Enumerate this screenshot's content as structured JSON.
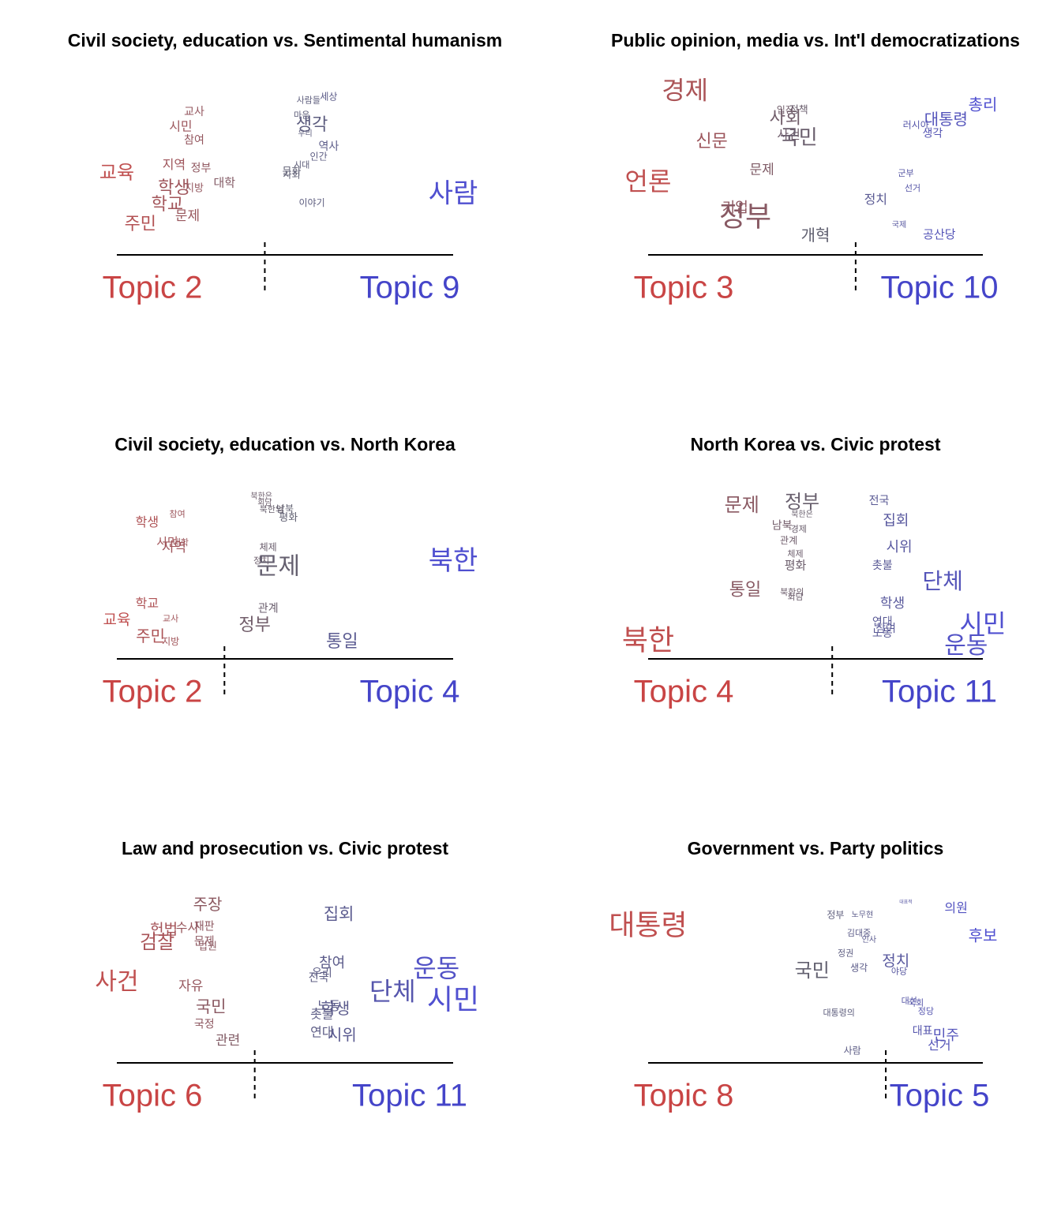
{
  "chart_data": [
    {
      "type": "perspectives",
      "title": "Civil society, education vs. Sentimental humanism",
      "topics": [
        {
          "name": "Topic 2",
          "color": "#c94545"
        },
        {
          "name": "Topic 9",
          "color": "#4545c9"
        }
      ],
      "gradient": [
        "#c05050",
        "#606070",
        "#5050d0"
      ],
      "xlim": [
        0,
        1
      ],
      "ylim": [
        0,
        1
      ],
      "divider": 0.44,
      "words": [
        "교사",
        "시민",
        "참여",
        "교육",
        "지역",
        "정부",
        "대학",
        "학생",
        "지방",
        "학교",
        "문제",
        "주민",
        "사람들",
        "세상",
        "마음",
        "생각",
        "우리",
        "역사",
        "인간",
        "시대",
        "문화",
        "사회",
        "이야기",
        "사람"
      ],
      "x": [
        0.23,
        0.19,
        0.23,
        0.0,
        0.17,
        0.25,
        0.32,
        0.17,
        0.23,
        0.15,
        0.21,
        0.07,
        0.57,
        0.63,
        0.55,
        0.58,
        0.56,
        0.63,
        0.6,
        0.55,
        0.52,
        0.52,
        0.58,
        1.0
      ],
      "y": [
        0.86,
        0.77,
        0.69,
        0.49,
        0.54,
        0.52,
        0.43,
        0.4,
        0.4,
        0.3,
        0.23,
        0.18,
        0.93,
        0.95,
        0.84,
        0.78,
        0.73,
        0.65,
        0.59,
        0.54,
        0.5,
        0.48,
        0.31,
        0.36
      ],
      "size": [
        14,
        16,
        14,
        24,
        16,
        14,
        15,
        22,
        13,
        22,
        17,
        22,
        11,
        12,
        11,
        22,
        10,
        14,
        12,
        11,
        13,
        12,
        12,
        34
      ]
    },
    {
      "type": "perspectives",
      "title": "Public opinion, media vs. Int'l democratizations",
      "topics": [
        {
          "name": "Topic 3",
          "color": "#c94545"
        },
        {
          "name": "Topic 10",
          "color": "#4545c9"
        }
      ],
      "gradient": [
        "#c05050",
        "#606070",
        "#5050d0"
      ],
      "xlim": [
        0,
        1
      ],
      "ylim": [
        0,
        1
      ],
      "divider": 0.62,
      "words": [
        "경제",
        "입장",
        "정책",
        "사회",
        "사건",
        "국민",
        "신문",
        "문제",
        "언론",
        "기업",
        "정부",
        "개혁",
        "총리",
        "대통령",
        "러시아",
        "생각",
        "군부",
        "선거",
        "정치",
        "국제",
        "공산당"
      ],
      "x": [
        0.11,
        0.41,
        0.45,
        0.41,
        0.42,
        0.45,
        0.19,
        0.34,
        0.0,
        0.26,
        0.29,
        0.5,
        1.0,
        0.89,
        0.8,
        0.85,
        0.77,
        0.79,
        0.68,
        0.75,
        0.87
      ],
      "y": [
        0.98,
        0.87,
        0.87,
        0.82,
        0.72,
        0.7,
        0.68,
        0.51,
        0.43,
        0.28,
        0.22,
        0.11,
        0.9,
        0.81,
        0.78,
        0.73,
        0.49,
        0.4,
        0.33,
        0.18,
        0.12
      ],
      "size": [
        32,
        12,
        13,
        22,
        16,
        26,
        22,
        17,
        32,
        18,
        36,
        20,
        20,
        20,
        12,
        14,
        11,
        11,
        16,
        10,
        15
      ]
    },
    {
      "type": "perspectives",
      "title": "Civil society, education vs. North Korea",
      "topics": [
        {
          "name": "Topic 2",
          "color": "#c94545"
        },
        {
          "name": "Topic 4",
          "color": "#4545c9"
        }
      ],
      "gradient": [
        "#c05050",
        "#606070",
        "#5050d0"
      ],
      "xlim": [
        0,
        1
      ],
      "ylim": [
        0,
        1
      ],
      "divider": 0.32,
      "words": [
        "북한은",
        "회담",
        "남북",
        "북한의",
        "평화",
        "학생",
        "참여",
        "시민",
        "대학",
        "지역",
        "체제",
        "정치",
        "문제",
        "북한",
        "학교",
        "교사",
        "교육",
        "관계",
        "정부",
        "주민",
        "지방",
        "통일"
      ],
      "x": [
        0.43,
        0.44,
        0.5,
        0.46,
        0.51,
        0.09,
        0.18,
        0.15,
        0.19,
        0.17,
        0.45,
        0.43,
        0.48,
        1.0,
        0.09,
        0.16,
        0.0,
        0.45,
        0.41,
        0.1,
        0.16,
        0.67
      ],
      "y": [
        0.98,
        0.94,
        0.9,
        0.9,
        0.85,
        0.82,
        0.87,
        0.7,
        0.7,
        0.67,
        0.67,
        0.59,
        0.55,
        0.58,
        0.33,
        0.24,
        0.23,
        0.3,
        0.2,
        0.13,
        0.1,
        0.1
      ],
      "size": [
        10,
        10,
        12,
        11,
        13,
        16,
        11,
        15,
        11,
        17,
        12,
        11,
        30,
        34,
        16,
        11,
        19,
        14,
        22,
        20,
        12,
        22
      ]
    },
    {
      "type": "perspectives",
      "title": "North Korea vs. Civic protest",
      "topics": [
        {
          "name": "Topic 4",
          "color": "#c94545"
        },
        {
          "name": "Topic 11",
          "color": "#4545c9"
        }
      ],
      "gradient": [
        "#c05050",
        "#606070",
        "#5050d0"
      ],
      "xlim": [
        0,
        1
      ],
      "ylim": [
        0,
        1
      ],
      "divider": 0.55,
      "words": [
        "문제",
        "정부",
        "북한은",
        "남북",
        "경제",
        "관계",
        "체제",
        "평화",
        "통일",
        "북한의",
        "회담",
        "북한",
        "전국",
        "집회",
        "시위",
        "촛불",
        "단체",
        "학생",
        "연대",
        "참여",
        "노동",
        "시민",
        "운동"
      ],
      "x": [
        0.28,
        0.46,
        0.46,
        0.4,
        0.45,
        0.42,
        0.44,
        0.44,
        0.29,
        0.43,
        0.44,
        0.0,
        0.69,
        0.74,
        0.75,
        0.7,
        0.88,
        0.73,
        0.7,
        0.71,
        0.7,
        1.0,
        0.95
      ],
      "y": [
        0.92,
        0.94,
        0.87,
        0.8,
        0.78,
        0.71,
        0.63,
        0.56,
        0.41,
        0.4,
        0.37,
        0.1,
        0.95,
        0.83,
        0.67,
        0.56,
        0.46,
        0.33,
        0.22,
        0.18,
        0.15,
        0.2,
        0.07
      ],
      "size": [
        24,
        24,
        10,
        14,
        11,
        12,
        11,
        15,
        22,
        11,
        11,
        36,
        14,
        18,
        18,
        14,
        28,
        17,
        14,
        14,
        14,
        32,
        30
      ]
    },
    {
      "type": "perspectives",
      "title": "Law and prosecution vs. Civic protest",
      "topics": [
        {
          "name": "Topic 6",
          "color": "#c94545"
        },
        {
          "name": "Topic 11",
          "color": "#4545c9"
        }
      ],
      "gradient": [
        "#c05050",
        "#606070",
        "#5050d0"
      ],
      "xlim": [
        0,
        1
      ],
      "ylim": [
        0,
        1
      ],
      "divider": 0.41,
      "words": [
        "주장",
        "수사",
        "재판",
        "헌법",
        "검찰",
        "문제",
        "법원",
        "사건",
        "자유",
        "국민",
        "국정",
        "관련",
        "집회",
        "참여",
        "우리",
        "전국",
        "학생",
        "노동",
        "촛불",
        "연대",
        "시위",
        "단체",
        "운동",
        "시민"
      ],
      "x": [
        0.27,
        0.21,
        0.26,
        0.14,
        0.12,
        0.26,
        0.27,
        0.0,
        0.22,
        0.28,
        0.26,
        0.33,
        0.66,
        0.64,
        0.61,
        0.6,
        0.65,
        0.63,
        0.61,
        0.61,
        0.67,
        0.82,
        0.95,
        1.0
      ],
      "y": [
        0.95,
        0.81,
        0.82,
        0.8,
        0.72,
        0.73,
        0.7,
        0.48,
        0.46,
        0.33,
        0.23,
        0.13,
        0.89,
        0.6,
        0.54,
        0.51,
        0.32,
        0.34,
        0.29,
        0.18,
        0.16,
        0.42,
        0.56,
        0.37
      ],
      "size": [
        20,
        16,
        14,
        19,
        24,
        14,
        13,
        30,
        17,
        21,
        14,
        17,
        21,
        18,
        14,
        14,
        20,
        16,
        16,
        16,
        20,
        32,
        32,
        36
      ]
    },
    {
      "type": "perspectives",
      "title": "Government vs. Party politics",
      "topics": [
        {
          "name": "Topic 8",
          "color": "#c94545"
        },
        {
          "name": "Topic 5",
          "color": "#4545c9"
        }
      ],
      "gradient": [
        "#c05050",
        "#606070",
        "#5050d0"
      ],
      "xlim": [
        0,
        1
      ],
      "ylim": [
        0,
        1
      ],
      "divider": 0.71,
      "words": [
        "대통령",
        "정부",
        "노무현",
        "대표적",
        "김대중",
        "인사",
        "정권",
        "생각",
        "국민",
        "정치",
        "야당",
        "대통령의",
        "사람",
        "의원",
        "후보",
        "대선",
        "국회",
        "정당",
        "대표",
        "민주",
        "선거"
      ],
      "x": [
        0.0,
        0.56,
        0.64,
        0.77,
        0.63,
        0.66,
        0.59,
        0.63,
        0.49,
        0.74,
        0.75,
        0.57,
        0.61,
        0.92,
        1.0,
        0.78,
        0.8,
        0.83,
        0.82,
        0.89,
        0.87
      ],
      "y": [
        0.82,
        0.89,
        0.89,
        0.97,
        0.78,
        0.74,
        0.66,
        0.57,
        0.55,
        0.61,
        0.55,
        0.3,
        0.07,
        0.93,
        0.76,
        0.37,
        0.36,
        0.31,
        0.19,
        0.16,
        0.1
      ],
      "size": [
        36,
        12,
        10,
        6,
        11,
        10,
        11,
        12,
        24,
        19,
        11,
        11,
        12,
        16,
        20,
        11,
        11,
        11,
        14,
        18,
        16
      ]
    }
  ]
}
